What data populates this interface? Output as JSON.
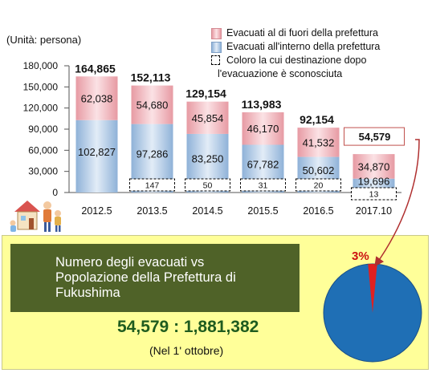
{
  "unit_label": "(Unità: persona)",
  "legend": {
    "outside": "Evacuati al di fuori della prefettura",
    "inside": "Evacuati all'interno della prefettura",
    "unknown_line1": "Coloro la cui destinazione dopo",
    "unknown_line2": "l'evacuazione è sconosciuta"
  },
  "chart_data": {
    "type": "bar",
    "stacked": true,
    "categories": [
      "2012.5",
      "2013.5",
      "2014.5",
      "2015.5",
      "2016.5",
      "2017.10"
    ],
    "series": [
      {
        "name": "Evacuati all'interno della prefettura",
        "values": [
          102827,
          97286,
          83250,
          67782,
          50602,
          19696
        ]
      },
      {
        "name": "Evacuati al di fuori della prefettura",
        "values": [
          62038,
          54680,
          45854,
          46170,
          41532,
          34870
        ]
      },
      {
        "name": "Coloro la cui destinazione dopo l'evacuazione è sconosciuta",
        "values": [
          null,
          147,
          50,
          31,
          20,
          13
        ]
      }
    ],
    "totals": [
      164865,
      152113,
      129154,
      113983,
      92154,
      54579
    ],
    "ylim": [
      0,
      180000
    ],
    "yticks": [
      0,
      30000,
      60000,
      90000,
      120000,
      150000,
      180000
    ],
    "ytick_labels": [
      "0",
      "30,000",
      "60,000",
      "90,000",
      "120,000",
      "150,000",
      "180,000"
    ],
    "total_labels": [
      "164,865",
      "152,113",
      "129,154",
      "113,983",
      "92,154",
      "54,579"
    ],
    "inside_labels": [
      "102,827",
      "97,286",
      "83,250",
      "67,782",
      "50,602",
      "19,696"
    ],
    "outside_labels": [
      "62,038",
      "54,680",
      "45,854",
      "46,170",
      "41,532",
      "34,870"
    ],
    "unknown_labels": [
      "",
      "147",
      "50",
      "31",
      "20",
      "13"
    ],
    "colors": {
      "inside": "#9dbfe3",
      "outside": "#e8a3aa",
      "pie_main": "#1f6fb5",
      "pie_slice": "#e02020"
    }
  },
  "panel": {
    "title_line1": "Numero degli evacuati vs",
    "title_line2": "Popolazione della Prefettura di",
    "title_line3": "Fukushima",
    "ratio": "54,579 : 1,881,382",
    "note": "(Nel 1' ottobre)"
  },
  "pie": {
    "percent_label": "3%",
    "percent": 3
  }
}
